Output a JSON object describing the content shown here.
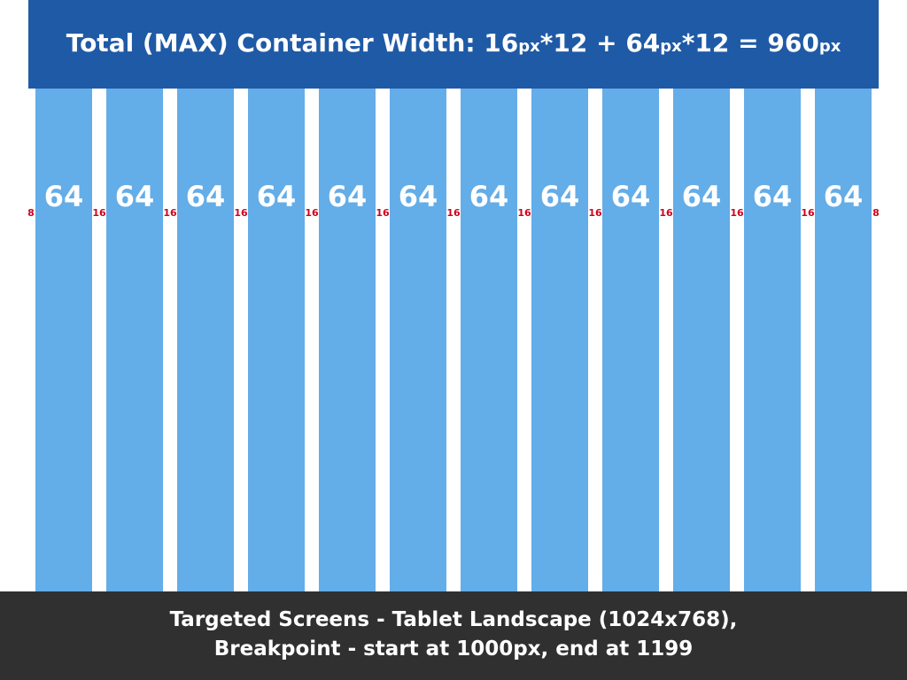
{
  "header": {
    "title": {
      "prefix": "Total (MAX) Container Width: ",
      "gutter_value": "16",
      "unit": "px",
      "mid1": "*12 + ",
      "column_value": "64",
      "mid2": "*12 = ",
      "total_value": "960"
    }
  },
  "grid": {
    "columns": [
      "64",
      "64",
      "64",
      "64",
      "64",
      "64",
      "64",
      "64",
      "64",
      "64",
      "64",
      "64"
    ],
    "gutters": [
      "8",
      "16",
      "16",
      "16",
      "16",
      "16",
      "16",
      "16",
      "16",
      "16",
      "16",
      "16",
      "8"
    ]
  },
  "footer": {
    "line1": "Targeted Screens - Tablet Landscape (1024x768),",
    "line2": "Breakpoint - start at 1000px, end at 1199"
  },
  "colors": {
    "header_bg": "#1f5aa6",
    "column_fill": "#63ade8",
    "gutter_label": "#d0021b",
    "footer_bg": "#303030"
  }
}
